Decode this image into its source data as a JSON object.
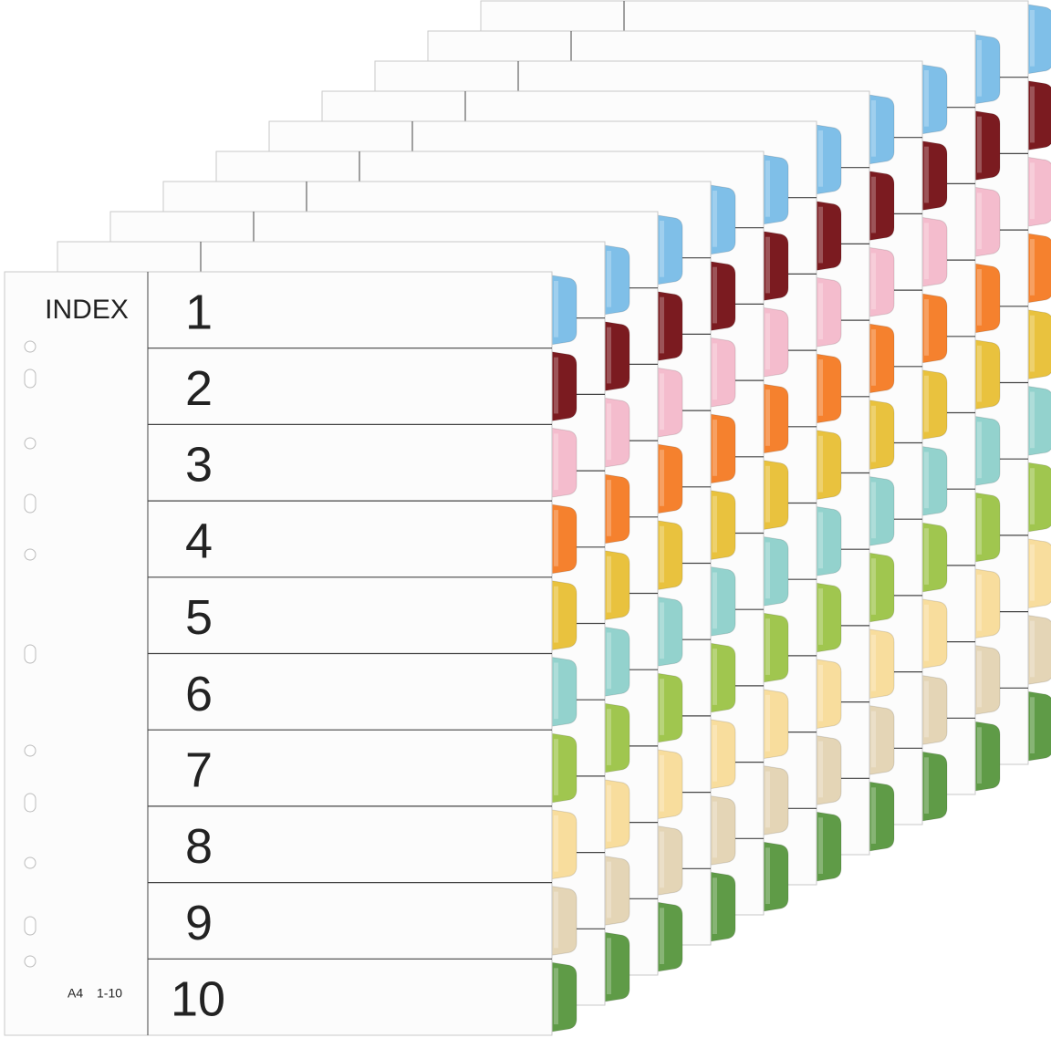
{
  "index_sheet": {
    "title": "INDEX",
    "numbers": [
      "1",
      "2",
      "3",
      "4",
      "5",
      "6",
      "7",
      "8",
      "9",
      "10"
    ],
    "footer": [
      "A4",
      "1-10"
    ]
  }
}
